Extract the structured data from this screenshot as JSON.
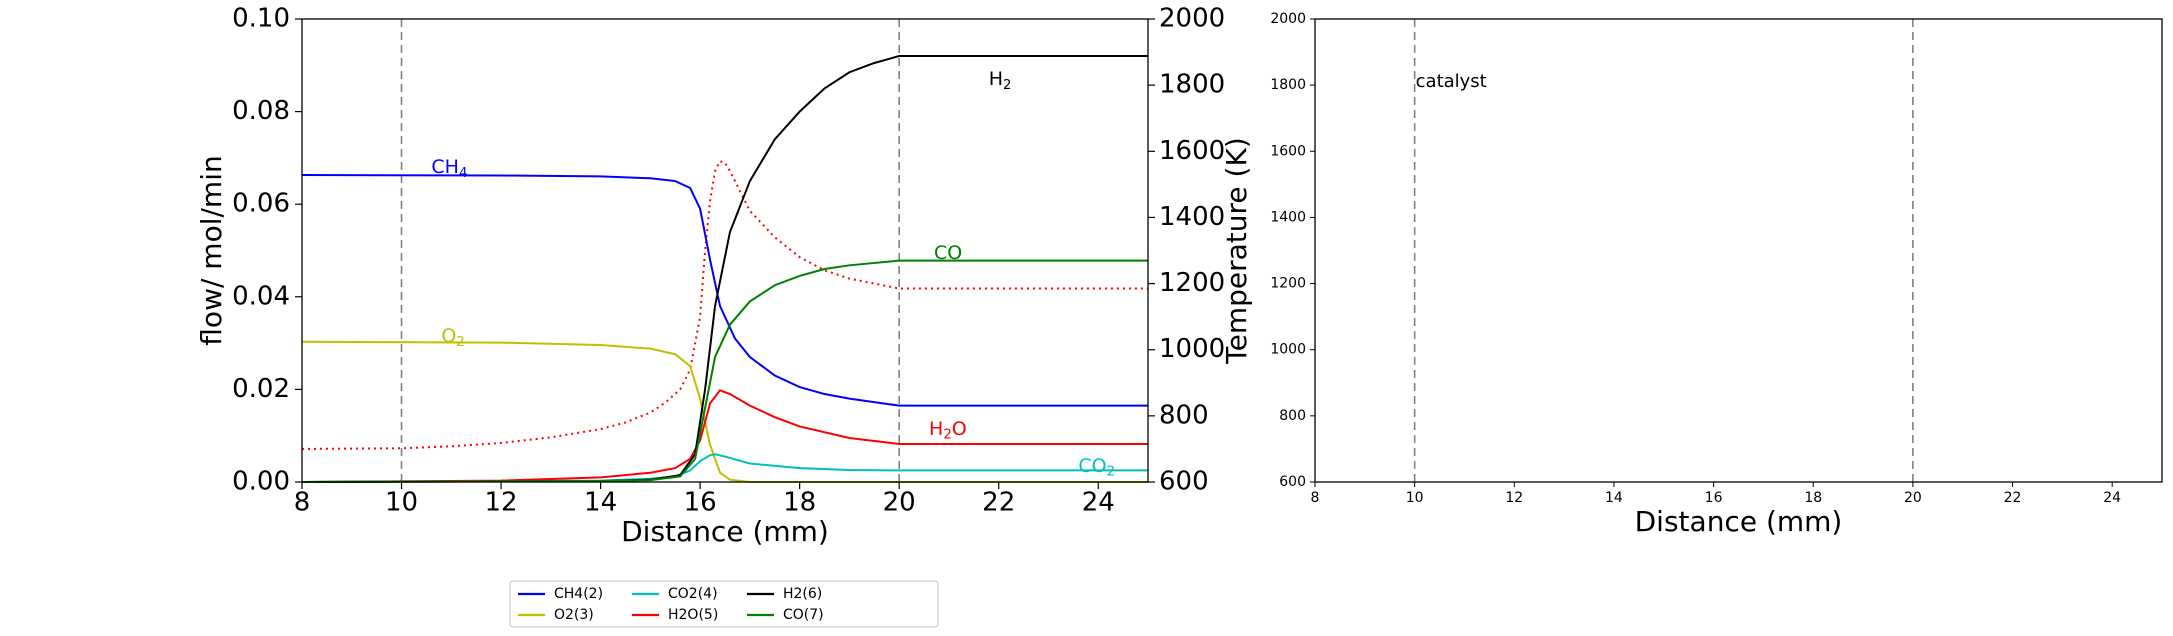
{
  "chart_data": [
    {
      "type": "line",
      "panel": "left",
      "xlabel": "Distance (mm)",
      "ylabel": "flow/ mol/min",
      "y2label": "Temperature (K)",
      "xlim": [
        8,
        25
      ],
      "ylim": [
        0,
        0.1
      ],
      "y2lim": [
        600,
        2000
      ],
      "xticks": [
        "8",
        "10",
        "12",
        "14",
        "16",
        "18",
        "20",
        "22",
        "24"
      ],
      "yticks": [
        "0.00",
        "0.02",
        "0.04",
        "0.06",
        "0.08",
        "0.10"
      ],
      "y2ticks": [
        "600",
        "800",
        "1000",
        "1200",
        "1400",
        "1600",
        "1800",
        "2000"
      ],
      "vlines": [
        10,
        20
      ],
      "series": [
        {
          "name": "CH4(2)",
          "label": "CH",
          "sub": "4",
          "color": "#0000ff",
          "label_pos": [
            10.6,
            0.068
          ],
          "x": [
            8,
            12,
            14,
            15,
            15.5,
            15.8,
            16.0,
            16.2,
            16.4,
            16.7,
            17,
            17.5,
            18,
            18.5,
            19,
            20,
            25
          ],
          "y": [
            0.0663,
            0.0662,
            0.066,
            0.0656,
            0.065,
            0.0635,
            0.059,
            0.048,
            0.038,
            0.031,
            0.027,
            0.023,
            0.0205,
            0.019,
            0.018,
            0.0165,
            0.0165
          ]
        },
        {
          "name": "O2(3)",
          "label": "O",
          "sub": "2",
          "color": "#bfbf00",
          "label_pos": [
            10.8,
            0.0315
          ],
          "x": [
            8,
            12,
            14,
            15,
            15.5,
            15.8,
            16.0,
            16.2,
            16.4,
            16.6,
            17,
            25
          ],
          "y": [
            0.0303,
            0.0301,
            0.0296,
            0.0288,
            0.0276,
            0.025,
            0.018,
            0.008,
            0.002,
            0.0005,
            0.0,
            0.0
          ]
        },
        {
          "name": "CO2(4)",
          "label": "CO",
          "sub": "2",
          "color": "#00bfbf",
          "label_pos": [
            23.6,
            0.0035
          ],
          "x": [
            8,
            14,
            15,
            15.5,
            15.8,
            16.0,
            16.2,
            16.3,
            16.5,
            17,
            18,
            19,
            20,
            25
          ],
          "y": [
            0.0,
            0.0003,
            0.0007,
            0.0012,
            0.0025,
            0.0045,
            0.0058,
            0.006,
            0.0055,
            0.004,
            0.003,
            0.0026,
            0.0025,
            0.0025
          ]
        },
        {
          "name": "H2O(5)",
          "label": "H",
          "sub": "2",
          "label_tail": "O",
          "color": "#ff0000",
          "label_pos": [
            20.6,
            0.0115
          ],
          "x": [
            8,
            12,
            14,
            15,
            15.5,
            15.8,
            16.0,
            16.2,
            16.4,
            16.6,
            17,
            17.5,
            18,
            19,
            20,
            25
          ],
          "y": [
            0.0,
            0.0003,
            0.001,
            0.002,
            0.003,
            0.005,
            0.009,
            0.017,
            0.0198,
            0.019,
            0.0165,
            0.014,
            0.012,
            0.0095,
            0.0082,
            0.0082
          ]
        },
        {
          "name": "H2(6)",
          "label": "H",
          "sub": "2",
          "color": "#000000",
          "label_pos": [
            21.8,
            0.087
          ],
          "x": [
            8,
            14,
            15,
            15.6,
            15.9,
            16.1,
            16.3,
            16.6,
            17,
            17.5,
            18,
            18.5,
            19,
            19.5,
            20,
            25
          ],
          "y": [
            0.0,
            0.0002,
            0.0005,
            0.0015,
            0.006,
            0.02,
            0.038,
            0.054,
            0.065,
            0.074,
            0.08,
            0.085,
            0.0885,
            0.0905,
            0.092,
            0.092
          ]
        },
        {
          "name": "CO(7)",
          "label": "CO",
          "color": "#008000",
          "label_pos": [
            20.7,
            0.0495
          ],
          "x": [
            8,
            14,
            15,
            15.6,
            15.9,
            16.1,
            16.3,
            16.6,
            17,
            17.5,
            18,
            18.5,
            19,
            20,
            25
          ],
          "y": [
            0.0,
            0.0002,
            0.0004,
            0.0012,
            0.005,
            0.016,
            0.027,
            0.034,
            0.039,
            0.0425,
            0.0445,
            0.046,
            0.0468,
            0.0478,
            0.0478
          ]
        }
      ],
      "temperature": {
        "color": "#ff0000",
        "style": "dotted",
        "x": [
          8,
          10,
          11,
          12,
          13,
          14,
          14.5,
          15,
          15.3,
          15.6,
          15.8,
          16.0,
          16.1,
          16.2,
          16.3,
          16.4,
          16.5,
          16.6,
          16.8,
          17,
          17.5,
          18,
          18.5,
          19,
          19.5,
          20,
          25
        ],
        "y": [
          700,
          702,
          708,
          718,
          735,
          760,
          780,
          810,
          840,
          880,
          940,
          1100,
          1300,
          1450,
          1540,
          1570,
          1565,
          1540,
          1480,
          1420,
          1340,
          1280,
          1240,
          1215,
          1200,
          1185,
          1185
        ]
      }
    },
    {
      "type": "line",
      "panel": "right",
      "xlabel": "Distance (mm)",
      "xlim": [
        8,
        25
      ],
      "ylim": [
        600,
        2000
      ],
      "xticks": [
        "8",
        "10",
        "12",
        "14",
        "16",
        "18",
        "20",
        "22",
        "24"
      ],
      "yticks": [
        "600",
        "800",
        "1000",
        "1200",
        "1400",
        "1600",
        "1800",
        "2000"
      ],
      "vlines": [
        10,
        20
      ],
      "annotation": {
        "text": "catalyst",
        "x": 10,
        "y": 1830
      },
      "series": []
    }
  ],
  "legend": {
    "placement": "bottom-center",
    "entries": [
      {
        "label": "CH4(2)",
        "color": "#0000ff"
      },
      {
        "label": "O2(3)",
        "color": "#bfbf00"
      },
      {
        "label": "CO2(4)",
        "color": "#00bfbf"
      },
      {
        "label": "H2O(5)",
        "color": "#ff0000"
      },
      {
        "label": "H2(6)",
        "color": "#000000"
      },
      {
        "label": "CO(7)",
        "color": "#008000"
      }
    ]
  }
}
